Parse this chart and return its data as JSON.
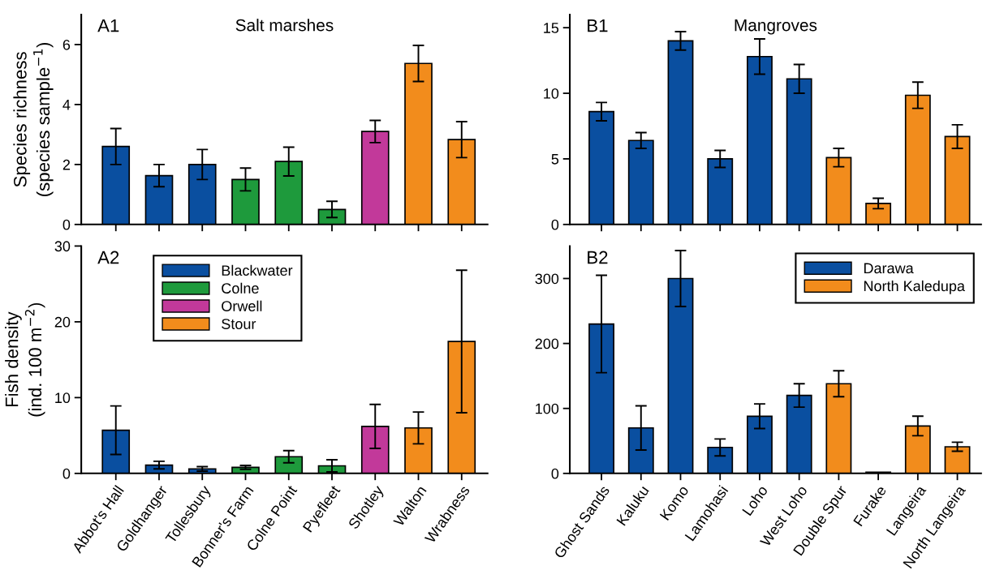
{
  "chart_data": [
    {
      "type": "bar",
      "title": "Salt marshes",
      "ylabel": "Species richness\n(species sample$^{−1}$)",
      "annotations": [
        "A1"
      ],
      "categories": [
        null,
        null,
        null,
        null,
        null,
        null,
        null,
        null,
        null
      ],
      "values": [
        2.6,
        1.63,
        2.0,
        1.5,
        2.1,
        0.5,
        3.1,
        5.37,
        2.83
      ],
      "errors": [
        0.6,
        0.37,
        0.5,
        0.38,
        0.48,
        0.27,
        0.37,
        0.6,
        0.6
      ],
      "colors": [
        "#0a4fa0",
        "#0a4fa0",
        "#0a4fa0",
        "#1e9a3c",
        "#1e9a3c",
        "#1e9a3c",
        "#c2399a",
        "#f28c1c",
        "#f28c1c"
      ],
      "ylim": [
        0,
        7
      ],
      "yticks": [
        0,
        2,
        4,
        6
      ],
      "tick_labels": "y",
      "grid": false,
      "legend": false
    },
    {
      "type": "bar",
      "title": "Mangroves",
      "annotations": [
        "B1"
      ],
      "categories": [
        null,
        null,
        null,
        null,
        null,
        null,
        null,
        null,
        null,
        null
      ],
      "values": [
        8.6,
        6.4,
        14.0,
        5.0,
        12.8,
        11.1,
        5.1,
        1.6,
        9.85,
        6.7
      ],
      "errors": [
        0.7,
        0.6,
        0.7,
        0.65,
        1.35,
        1.1,
        0.7,
        0.4,
        1.0,
        0.9
      ],
      "colors": [
        "#0a4fa0",
        "#0a4fa0",
        "#0a4fa0",
        "#0a4fa0",
        "#0a4fa0",
        "#0a4fa0",
        "#f28c1c",
        "#f28c1c",
        "#f28c1c",
        "#f28c1c"
      ],
      "ylim": [
        0,
        16
      ],
      "yticks": [
        0,
        5,
        10,
        15
      ],
      "tick_labels": "y",
      "grid": false,
      "legend": false
    },
    {
      "type": "bar",
      "ylabel": "Fish density\n(ind. 100 m$^{−2}$)",
      "annotations": [
        "A2"
      ],
      "categories": [
        "Abbot's Hall",
        "Goldhanger",
        "Tollesbury",
        "Bonner's Farm",
        "Colne Point",
        "Pyefleet",
        "Shotley",
        "Walton",
        "Wrabness"
      ],
      "series": [
        {
          "name": "Blackwater",
          "color": "#0a4fa0",
          "values": [
            5.7,
            1.1,
            0.6,
            null,
            null,
            null,
            null,
            null,
            null
          ],
          "errors": [
            3.2,
            0.5,
            0.3,
            null,
            null,
            null,
            null,
            null,
            null
          ]
        },
        {
          "name": "Colne",
          "color": "#1e9a3c",
          "values": [
            null,
            null,
            null,
            0.8,
            2.2,
            1.0,
            null,
            null,
            null
          ],
          "errors": [
            null,
            null,
            null,
            0.25,
            0.8,
            0.8,
            null,
            null,
            null
          ]
        },
        {
          "name": "Orwell",
          "color": "#c2399a",
          "values": [
            null,
            null,
            null,
            null,
            null,
            null,
            6.2,
            null,
            null
          ],
          "errors": [
            null,
            null,
            null,
            null,
            null,
            null,
            2.9,
            null,
            null
          ]
        },
        {
          "name": "Stour",
          "color": "#f28c1c",
          "values": [
            null,
            null,
            null,
            null,
            null,
            null,
            null,
            6.0,
            17.4
          ],
          "errors": [
            null,
            null,
            null,
            null,
            null,
            null,
            null,
            2.1,
            9.4
          ]
        }
      ],
      "ylim": [
        0,
        30
      ],
      "yticks": [
        0,
        10,
        20,
        30
      ],
      "grid": false,
      "legend": "top left"
    },
    {
      "type": "bar",
      "annotations": [
        "B2"
      ],
      "categories": [
        "Ghost Sands",
        "Kaluku",
        "Komo",
        "Lamohasi",
        "Loho",
        "West Loho",
        "Double Spur",
        "Furake",
        "Langeira",
        "North Langeira"
      ],
      "series": [
        {
          "name": "Darawa",
          "color": "#0a4fa0",
          "values": [
            230,
            70,
            300,
            40,
            88,
            120,
            null,
            null,
            null,
            null
          ],
          "errors": [
            75,
            34,
            43,
            13,
            19,
            18,
            null,
            null,
            null,
            null
          ]
        },
        {
          "name": "North Kaledupa",
          "color": "#f28c1c",
          "values": [
            null,
            null,
            null,
            null,
            null,
            null,
            138,
            2,
            73,
            41
          ],
          "errors": [
            null,
            null,
            null,
            null,
            null,
            null,
            20,
            null,
            15,
            7
          ]
        }
      ],
      "ylim": [
        0,
        350
      ],
      "yticks": [
        0,
        100,
        200,
        300
      ],
      "grid": false,
      "legend": "top right"
    }
  ]
}
